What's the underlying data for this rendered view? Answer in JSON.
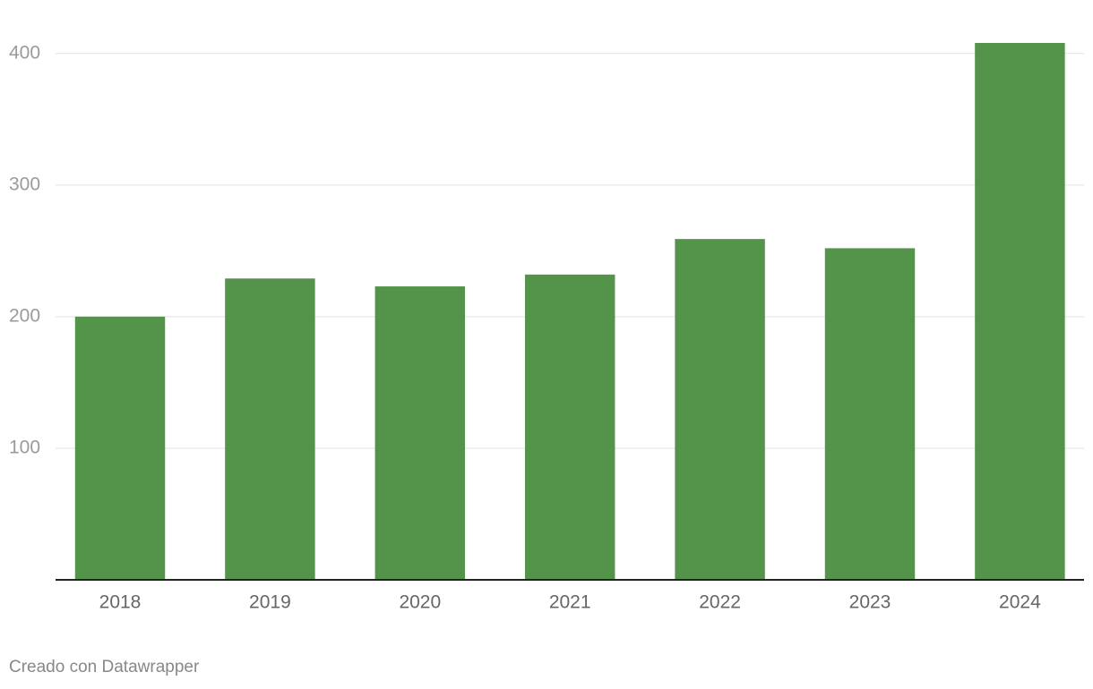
{
  "chart_data": {
    "type": "bar",
    "categories": [
      "2018",
      "2019",
      "2020",
      "2021",
      "2022",
      "2023",
      "2024"
    ],
    "values": [
      200,
      229,
      223,
      232,
      259,
      252,
      408
    ],
    "color": "#54944a",
    "ylim": [
      0,
      408
    ],
    "yticks": [
      100,
      200,
      300,
      400
    ],
    "grid": true,
    "footer": "Creado con Datawrapper"
  }
}
